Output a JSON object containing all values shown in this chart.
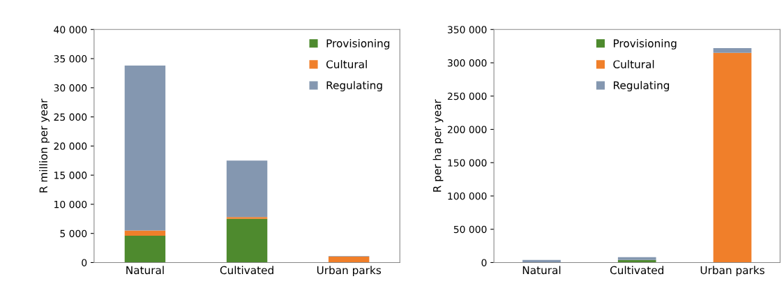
{
  "chart_data": [
    {
      "type": "bar",
      "stacked": true,
      "ylabel": "R million per year",
      "categories": [
        "Natural",
        "Cultivated",
        "Urban parks"
      ],
      "ylim": [
        0,
        40000
      ],
      "yticks": [
        {
          "value": 0,
          "label": "0"
        },
        {
          "value": 5000,
          "label": "5 000"
        },
        {
          "value": 10000,
          "label": "10 000"
        },
        {
          "value": 15000,
          "label": "15 000"
        },
        {
          "value": 20000,
          "label": "20 000"
        },
        {
          "value": 25000,
          "label": "25 000"
        },
        {
          "value": 30000,
          "label": "30 000"
        },
        {
          "value": 35000,
          "label": "35 000"
        },
        {
          "value": 40000,
          "label": "40 000"
        }
      ],
      "grid": false,
      "legend": "top right",
      "series": [
        {
          "name": "Provisioning",
          "color": "#4e8a2e",
          "values": [
            4600,
            7500,
            0
          ]
        },
        {
          "name": "Cultural",
          "color": "#f07f2a",
          "values": [
            900,
            300,
            1000
          ]
        },
        {
          "name": "Regulating",
          "color": "#8497b0",
          "values": [
            28300,
            9700,
            100
          ]
        }
      ]
    },
    {
      "type": "bar",
      "stacked": true,
      "ylabel": "R per ha per year",
      "categories": [
        "Natural",
        "Cultivated",
        "Urban parks"
      ],
      "ylim": [
        0,
        350000
      ],
      "yticks": [
        {
          "value": 0,
          "label": "0"
        },
        {
          "value": 50000,
          "label": "50 000"
        },
        {
          "value": 100000,
          "label": "100 000"
        },
        {
          "value": 150000,
          "label": "150 000"
        },
        {
          "value": 200000,
          "label": "200 000"
        },
        {
          "value": 250000,
          "label": "250 000"
        },
        {
          "value": 300000,
          "label": "300 000"
        },
        {
          "value": 350000,
          "label": "350 000"
        }
      ],
      "grid": false,
      "legend": "top",
      "series": [
        {
          "name": "Provisioning",
          "color": "#4e8a2e",
          "values": [
            0,
            4000,
            0
          ]
        },
        {
          "name": "Cultural",
          "color": "#f07f2a",
          "values": [
            0,
            0,
            315000
          ]
        },
        {
          "name": "Regulating",
          "color": "#8497b0",
          "values": [
            4000,
            4000,
            7000
          ]
        }
      ]
    }
  ]
}
